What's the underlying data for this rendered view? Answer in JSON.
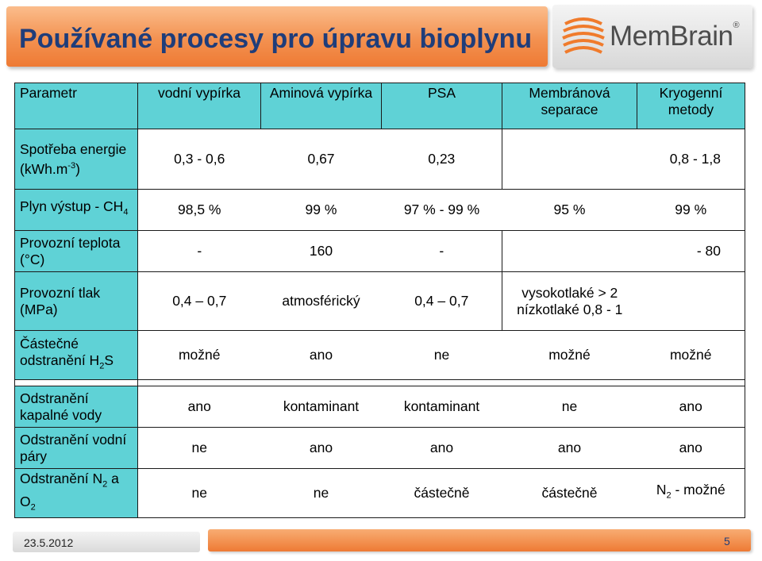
{
  "slide": {
    "title": "Používané procesy pro úpravu bioplynu",
    "logo_text": "MemBrain",
    "logo_reg": "®",
    "date": "23.5.2012",
    "page_number": "5"
  },
  "colors": {
    "title_text": "#1f3d7a",
    "header_fill": "#5fd2d6",
    "banner": "#f39150"
  },
  "table": {
    "headers": {
      "param": "Parametr",
      "c1": "vodní vypírka",
      "c2": "Aminová vypírka",
      "c3": "PSA",
      "c4": "Membránová separace",
      "c5": "Kryogenní metody"
    },
    "rows": {
      "spotreba": {
        "label_main": "Spotřeba energie (kWh.m",
        "label_sup": "-3",
        "label_end": ")",
        "c1": "0,3 - 0,6",
        "c2": "0,67",
        "c3": "0,23",
        "c5": "0,8 - 1,8"
      },
      "plyn": {
        "label_main": "Plyn výstup - CH",
        "label_sub": "4",
        "c1": "98,5 %",
        "c2": "99 %",
        "c3": "97 % - 99 %",
        "c4": "95 %",
        "c5": "99 %"
      },
      "teplota": {
        "label": "Provozní teplota (°C)",
        "c1": "-",
        "c2": "160",
        "c3": "-",
        "c5": "- 80"
      },
      "tlak": {
        "label": "Provozní tlak (MPa)",
        "c1": "0,4 – 0,7",
        "c2": "atmosférický",
        "c3": "0,4 – 0,7",
        "c4_line1": "vysokotlaké > 2",
        "c4_line2": "nízkotlaké 0,8 - 1"
      },
      "h2s": {
        "label_main": "Částečné odstranění H",
        "label_sub": "2",
        "label_end": "S",
        "c1": "možné",
        "c2": "ano",
        "c3": "ne",
        "c4": "možné",
        "c5": "možné"
      },
      "kapalna": {
        "label": "Odstranění kapalné vody",
        "c1": "ano",
        "c2": "kontaminant",
        "c3": "kontaminant",
        "c4": "ne",
        "c5": "ano"
      },
      "para": {
        "label": "Odstranění vodní páry",
        "c1": "ne",
        "c2": "ano",
        "c3": "ano",
        "c4": "ano",
        "c5": "ano"
      },
      "n2": {
        "label_main": "Odstranění N",
        "label_sub": "2",
        "label_mid": " a O",
        "label_sub2": "2",
        "c1": "ne",
        "c2": "ne",
        "c3": "částečně",
        "c4": "částečně",
        "c5_main": "N",
        "c5_sub": "2",
        "c5_end": " - možné"
      }
    }
  }
}
